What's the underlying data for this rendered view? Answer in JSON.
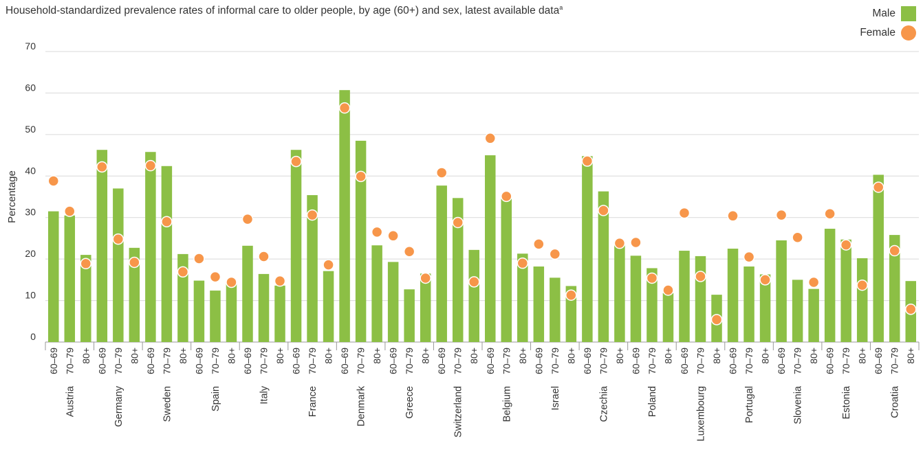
{
  "chart_data": {
    "type": "bar",
    "title": "Household-standardized prevalence rates of informal care to older people, by age (60+) and sex, latest available data",
    "title_superscript": "a",
    "ylabel": "Percentage",
    "ylim": [
      0,
      70
    ],
    "yticks": [
      0,
      10,
      20,
      30,
      40,
      50,
      60,
      70
    ],
    "grid": true,
    "legend_position": "top-right",
    "age_groups": [
      "60–69",
      "70–79",
      "80+"
    ],
    "groups": [
      "Austria",
      "Germany",
      "Sweden",
      "Spain",
      "Italy",
      "France",
      "Denmark",
      "Greece",
      "Switzerland",
      "Belgium",
      "Israel",
      "Czechia",
      "Poland",
      "Luxembourg",
      "Portugal",
      "Slovenia",
      "Estonia",
      "Croatia"
    ],
    "series": [
      {
        "name": "Male",
        "mark": "bar",
        "color": "#8cbf45",
        "values": [
          31.5,
          30.5,
          21,
          46.3,
          37,
          22.7,
          45.8,
          42.4,
          21.2,
          14.8,
          12.4,
          14.2,
          23.2,
          16.4,
          13.6,
          46.3,
          35.4,
          17.1,
          60.7,
          48.5,
          23.3,
          19.3,
          12.7,
          16.5,
          37.7,
          34.7,
          22.2,
          45,
          34.5,
          21.3,
          18.2,
          15.5,
          13.5,
          44.8,
          36.3,
          23.7,
          20.8,
          17.8,
          11.8,
          22,
          20.7,
          11.4,
          22.5,
          18.2,
          16.3,
          24.5,
          15,
          12.8,
          27.3,
          24.7,
          20.2,
          40.3,
          25.8,
          14.7
        ]
      },
      {
        "name": "Female",
        "mark": "dot",
        "color": "#f7964a",
        "values": [
          38.8,
          31.5,
          18.9,
          42.2,
          24.8,
          19.2,
          42.5,
          29,
          16.9,
          20.1,
          15.7,
          14.4,
          29.6,
          20.6,
          14.7,
          43.5,
          30.6,
          18.6,
          56.4,
          39.9,
          26.5,
          25.6,
          21.8,
          15.4,
          40.8,
          28.8,
          14.5,
          49.1,
          35.1,
          19,
          23.6,
          21.2,
          11.3,
          43.6,
          31.7,
          23.8,
          24,
          15.4,
          12.5,
          31.1,
          15.8,
          5.4,
          30.4,
          20.5,
          15,
          30.6,
          25.2,
          14.4,
          30.9,
          23.4,
          13.7,
          37.3,
          22,
          7.9
        ]
      }
    ]
  }
}
